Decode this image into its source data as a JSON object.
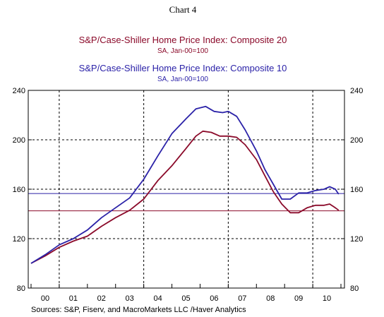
{
  "header": {
    "chart_number": "Chart 4"
  },
  "chart_data": {
    "type": "line",
    "titles": [
      {
        "text": "S&P/Case-Shiller Home Price Index: Composite 20",
        "subtitle": "SA, Jan-00=100",
        "color": "#8b0a2a"
      },
      {
        "text": "S&P/Case-Shiller Home Price Index: Composite 10",
        "subtitle": "SA, Jan-00=100",
        "color": "#2b22a8"
      }
    ],
    "ylim": [
      80,
      240
    ],
    "yticks": [
      80,
      120,
      160,
      200,
      240
    ],
    "ytick_labels": [
      "80",
      "120",
      "160",
      "200",
      "240"
    ],
    "xlim": [
      2000.0,
      2011.0
    ],
    "xtick_labels": [
      {
        "x": 2000.5,
        "label": "00"
      },
      {
        "x": 2001.5,
        "label": "01"
      },
      {
        "x": 2002.5,
        "label": "02"
      },
      {
        "x": 2003.5,
        "label": "03"
      },
      {
        "x": 2004.5,
        "label": "04"
      },
      {
        "x": 2005.5,
        "label": "05"
      },
      {
        "x": 2006.5,
        "label": "06"
      },
      {
        "x": 2007.5,
        "label": "07"
      },
      {
        "x": 2008.5,
        "label": "08"
      },
      {
        "x": 2009.5,
        "label": "09"
      },
      {
        "x": 2010.5,
        "label": "10"
      }
    ],
    "vgrid": [
      2001,
      2004,
      2007,
      2010
    ],
    "hgrid": [
      120,
      160,
      200
    ],
    "reference_lines": [
      {
        "y": 142.5,
        "color": "#8b0a2a"
      },
      {
        "y": 156.5,
        "color": "#2b22a8"
      }
    ],
    "series": [
      {
        "color": "#8b0a2a",
        "x": [
          2000.0,
          2000.5,
          2001.0,
          2001.5,
          2002.0,
          2002.5,
          2003.0,
          2003.5,
          2004.0,
          2004.5,
          2005.0,
          2005.5,
          2005.85,
          2006.1,
          2006.4,
          2006.7,
          2007.0,
          2007.3,
          2007.6,
          2008.0,
          2008.3,
          2008.6,
          2008.9,
          2009.2,
          2009.5,
          2009.8,
          2010.1,
          2010.4,
          2010.6,
          2010.8,
          2010.92
        ],
        "values": [
          100,
          106,
          113,
          118,
          122,
          130,
          137,
          143,
          152,
          167,
          179,
          193,
          203,
          207,
          206,
          203,
          203,
          202,
          196,
          184,
          171,
          158,
          148,
          141,
          141,
          145,
          147,
          147,
          148,
          145,
          143
        ]
      },
      {
        "color": "#2b22a8",
        "x": [
          2000.0,
          2000.5,
          2001.0,
          2001.5,
          2002.0,
          2002.5,
          2003.0,
          2003.5,
          2004.0,
          2004.5,
          2005.0,
          2005.5,
          2005.85,
          2006.2,
          2006.5,
          2006.8,
          2007.0,
          2007.3,
          2007.6,
          2008.0,
          2008.3,
          2008.6,
          2008.9,
          2009.2,
          2009.5,
          2009.8,
          2010.1,
          2010.4,
          2010.6,
          2010.8,
          2010.92
        ],
        "values": [
          100,
          107,
          115,
          120,
          127,
          137,
          145,
          153,
          168,
          187,
          205,
          217,
          225,
          227,
          223,
          222,
          223,
          219,
          208,
          191,
          176,
          164,
          152,
          152,
          157,
          157,
          159,
          160,
          162,
          160,
          156
        ]
      }
    ],
    "source": "Sources:  S&P, Fiserv, and MacroMarkets LLC /Haver Analytics"
  }
}
